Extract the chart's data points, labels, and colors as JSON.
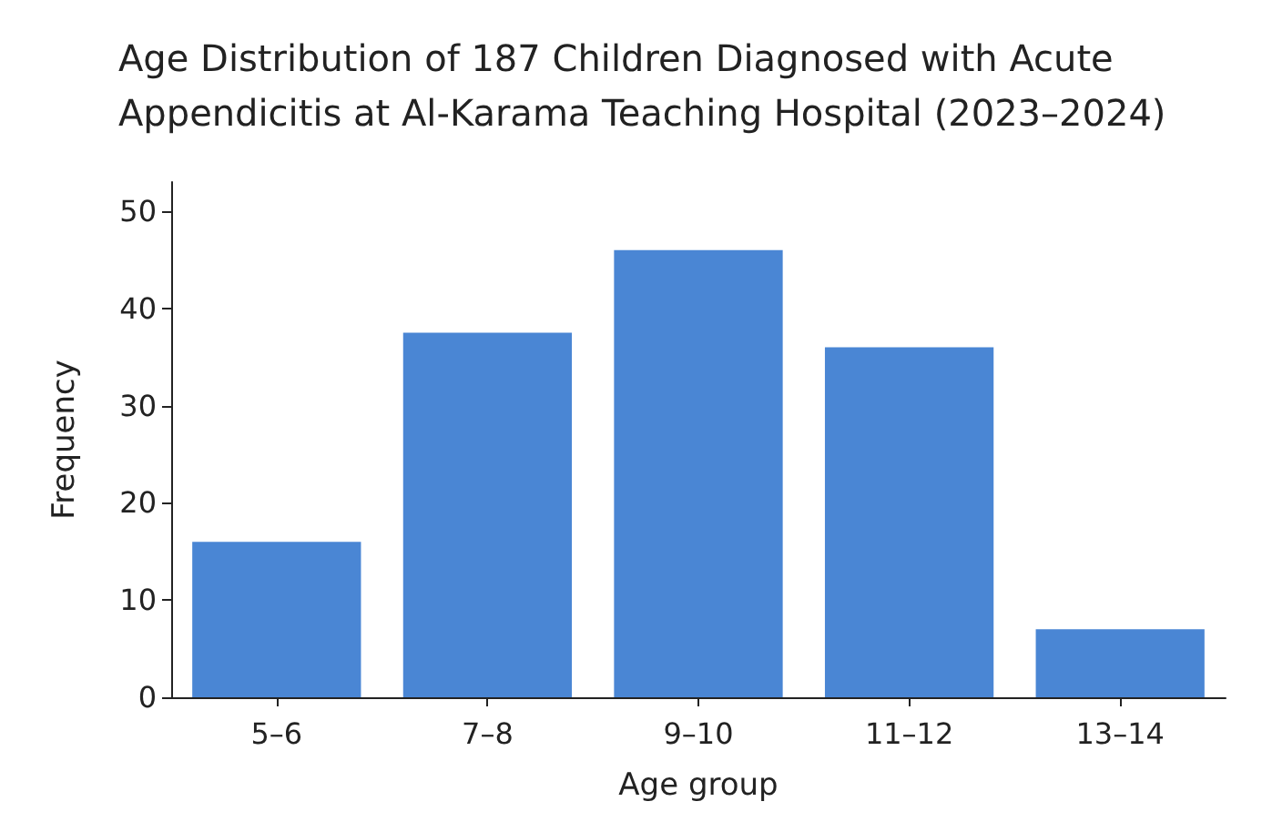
{
  "chart_data": {
    "type": "bar",
    "title": "Age Distribution of 187 Children Diagnosed with Acute\nAppendicitis at Al-Karama Teaching Hospital (2023–2024)",
    "xlabel": "Age group",
    "ylabel": "Frequency",
    "categories": [
      "5–6",
      "7–8",
      "9–10",
      "11–12",
      "13–14"
    ],
    "values": [
      16,
      37.5,
      46,
      36,
      7
    ],
    "color": "#4a86d4",
    "ylim": [
      0,
      53
    ],
    "yticks": [
      0,
      10,
      20,
      30,
      40,
      50
    ],
    "grid": false
  }
}
